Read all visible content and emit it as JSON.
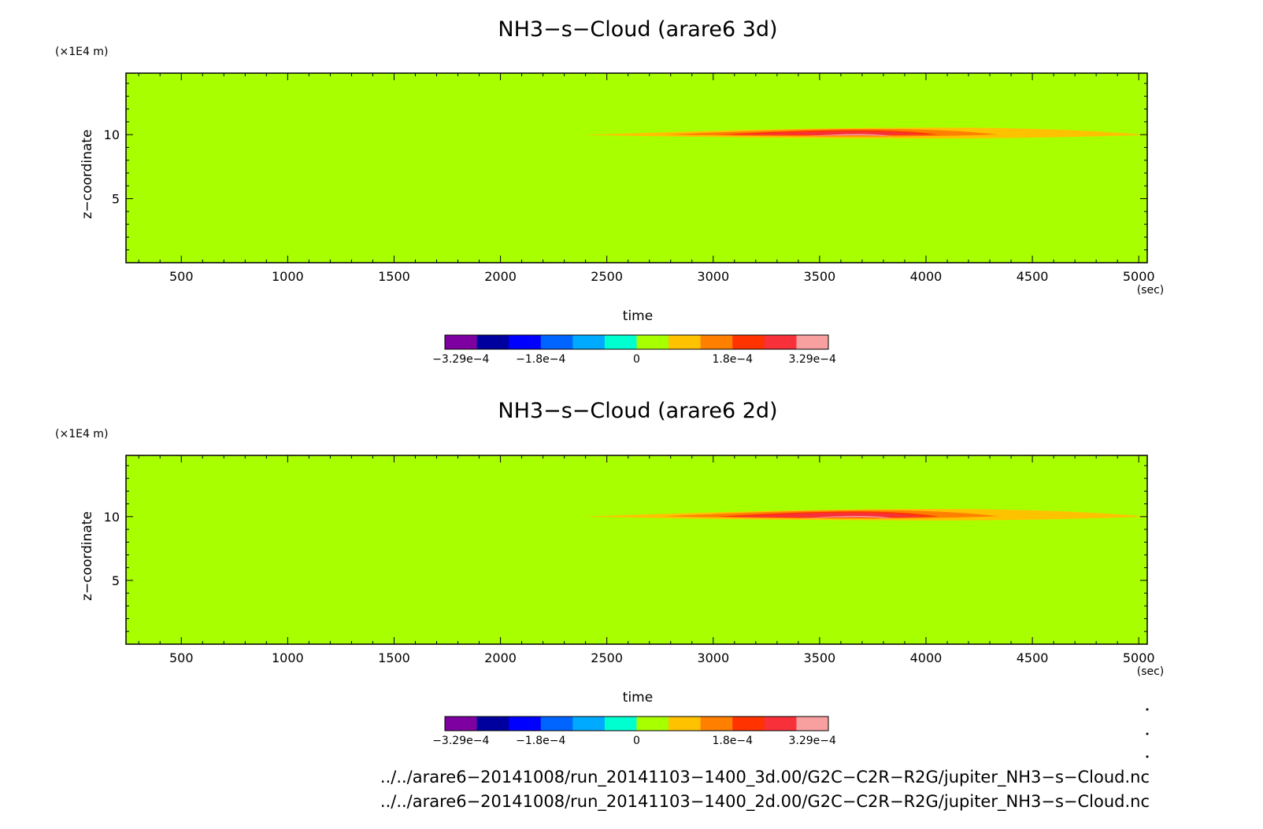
{
  "chart_data": [
    {
      "type": "heatmap",
      "title": "NH3−s−Cloud (arare6 3d)",
      "xlabel": "time",
      "ylabel": "z−coordinate",
      "x_unit": "(sec)",
      "y_unit": "(×1E4 m)",
      "xlim": [
        240,
        5040
      ],
      "ylim": [
        0,
        14.8
      ],
      "xticks": [
        "500",
        "1000",
        "1500",
        "2000",
        "2500",
        "3000",
        "3500",
        "4000",
        "4500",
        "5000"
      ],
      "xtick_values": [
        500,
        1000,
        1500,
        2000,
        2500,
        3000,
        3500,
        4000,
        4500,
        5000
      ],
      "yticks": [
        "5",
        "10"
      ],
      "ytick_values": [
        5,
        10
      ],
      "background_level": 0,
      "feature": {
        "description_levels": [
          {
            "level": "0 to 6e-5",
            "color": "#ffc200",
            "x": [
              2390,
              5040
            ],
            "ypeak": 10.55,
            "ylow": 9.7
          },
          {
            "level": "6e-5 to 1.2e-4",
            "color": "#ff7f00",
            "x": [
              2770,
              4340
            ],
            "ypeak": 10.45,
            "ylow": 9.85
          },
          {
            "level": "1.2e-4 to 1.8e-4",
            "color": "#ff3300",
            "x": [
              3020,
              4060
            ],
            "ypeak": 10.35,
            "ylow": 9.95
          },
          {
            "level": "1.8e-4 to 2.4e-4",
            "color": "#f8303a",
            "x": [
              3080,
              4010
            ],
            "ypeak": 10.25,
            "ylow": 10.0
          },
          {
            "level": "2.4e-4 to 3.29e-4",
            "color": "#f8a0a0",
            "x": [
              3410,
              3850
            ],
            "ypeak": 10.05,
            "ylow": 9.95
          }
        ]
      }
    },
    {
      "type": "heatmap",
      "title": "NH3−s−Cloud (arare6 2d)",
      "xlabel": "time",
      "ylabel": "z−coordinate",
      "x_unit": "(sec)",
      "y_unit": "(×1E4 m)",
      "xlim": [
        240,
        5040
      ],
      "ylim": [
        0,
        14.8
      ],
      "xticks": [
        "500",
        "1000",
        "1500",
        "2000",
        "2500",
        "3000",
        "3500",
        "4000",
        "4500",
        "5000"
      ],
      "xtick_values": [
        500,
        1000,
        1500,
        2000,
        2500,
        3000,
        3500,
        4000,
        4500,
        5000
      ],
      "yticks": [
        "5",
        "10"
      ],
      "ytick_values": [
        5,
        10
      ],
      "background_level": 0,
      "feature": {
        "description_levels": [
          {
            "level": "0 to 6e-5",
            "color": "#ffc200",
            "x": [
              2390,
              5040
            ],
            "ypeak": 10.6,
            "ylow": 9.7
          },
          {
            "level": "6e-5 to 1.2e-4",
            "color": "#ff7f00",
            "x": [
              2770,
              4340
            ],
            "ypeak": 10.5,
            "ylow": 9.85
          },
          {
            "level": "1.2e-4 to 1.8e-4",
            "color": "#ff3300",
            "x": [
              3020,
              4060
            ],
            "ypeak": 10.4,
            "ylow": 9.9
          },
          {
            "level": "1.8e-4 to 2.4e-4",
            "color": "#f8303a",
            "x": [
              3080,
              4010
            ],
            "ypeak": 10.3,
            "ylow": 9.95
          },
          {
            "level": "2.4e-4 to 3.29e-4",
            "color": "#f8a0a0",
            "x": [
              3410,
              3850
            ],
            "ypeak": 10.05,
            "ylow": 9.95
          }
        ]
      }
    }
  ],
  "colorbar": {
    "colors": [
      "#7f00a0",
      "#00009f",
      "#0000ff",
      "#0064ff",
      "#00aaff",
      "#00ffd0",
      "#a8ff00",
      "#ffc200",
      "#ff7f00",
      "#ff3300",
      "#f8303a",
      "#f8a0a0"
    ],
    "labels": [
      "−3.29e−4",
      "−1.8e−4",
      "0",
      "1.8e−4",
      "3.29e−4"
    ],
    "label_positions": [
      0,
      2.5,
      5.5,
      8.5,
      11
    ]
  },
  "background_color": "#a8ff00",
  "files": [
    "../../arare6−20141008/run_20141103−1400_3d.00/G2C−C2R−R2G/jupiter_NH3−s−Cloud.nc",
    "../../arare6−20141008/run_20141103−1400_2d.00/G2C−C2R−R2G/jupiter_NH3−s−Cloud.nc"
  ]
}
